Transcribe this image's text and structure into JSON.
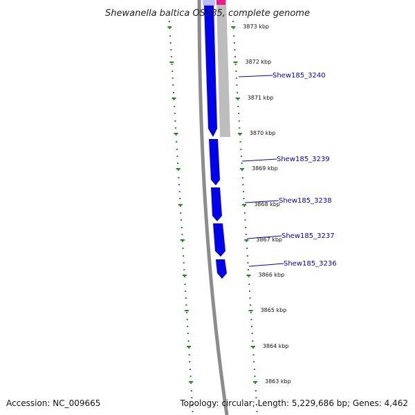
{
  "title": "Shewanella baltica OS185, complete genome",
  "accession": "Accession: NC_009665",
  "summary": "Topology: circular; Length: 5,229,686 bp; Genes: 4,462",
  "scale_labels": [
    "3873 kbp",
    "3872 kbp",
    "3871 kbp",
    "3870 kbp",
    "3869 kbp",
    "3868 kbp",
    "3867 kbp",
    "3866 kbp",
    "3865 kbp",
    "3864 kbp",
    "3863 kbp"
  ],
  "genes": [
    "Shew185_3240",
    "Shew185_3239",
    "Shew185_3238",
    "Shew185_3237",
    "Shew185_3236"
  ],
  "colors": {
    "cds": "#0000ee",
    "cds_light": "#bbbbff",
    "gene": "#bdbdbd",
    "rna": "#ee1a8c",
    "backbone": "#8c8c8c",
    "ticks": "#1a8c1a",
    "label_line": "#0000cc"
  }
}
